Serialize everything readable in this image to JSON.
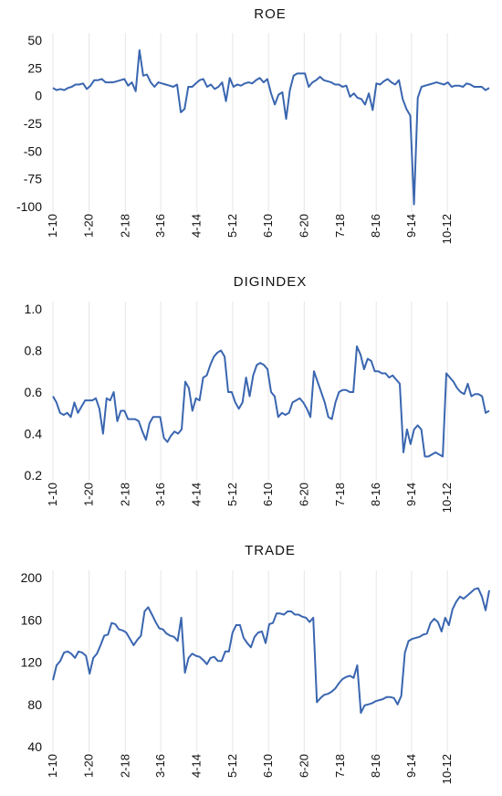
{
  "chart_data": [
    {
      "type": "line",
      "title": "ROE",
      "ylim": [
        -100,
        50
      ],
      "yticks": [
        50,
        25,
        0,
        -25,
        -50,
        -75,
        -100
      ],
      "xticks": [
        "1-10",
        "1-20",
        "2-18",
        "3-16",
        "4-14",
        "5-12",
        "6-10",
        "6-20",
        "7-18",
        "8-16",
        "9-14",
        "10-12"
      ],
      "grid": "vertical",
      "series": [
        {
          "values": [
            7,
            5,
            6,
            5,
            7,
            8,
            10,
            10,
            11,
            6,
            9,
            14,
            14,
            15,
            12,
            12,
            12,
            13,
            14,
            15,
            9,
            12,
            4,
            41,
            18,
            19,
            12,
            8,
            12,
            11,
            10,
            9,
            8,
            10,
            -15,
            -12,
            8,
            8,
            11,
            14,
            15,
            8,
            10,
            6,
            8,
            12,
            -5,
            16,
            8,
            10,
            9,
            11,
            12,
            11,
            14,
            16,
            12,
            15,
            2,
            -8,
            1,
            3,
            -21,
            5,
            18,
            20,
            20,
            20,
            8,
            12,
            14,
            17,
            14,
            13,
            12,
            10,
            10,
            8,
            9,
            -1,
            2,
            -2,
            -3,
            -8,
            2,
            -13,
            11,
            10,
            13,
            15,
            12,
            10,
            14,
            -3,
            -12,
            -18,
            -98,
            -2,
            8,
            9,
            10,
            11,
            12,
            11,
            10,
            12,
            8,
            9,
            9,
            8,
            11,
            10,
            8,
            8,
            8,
            5,
            7
          ]
        }
      ]
    },
    {
      "type": "line",
      "title": "DIGINDEX",
      "ylim": [
        0.2,
        1.0
      ],
      "yticks": [
        "1.0",
        "0.8",
        "0.6",
        "0.4",
        "0.2"
      ],
      "xticks": [
        "1-10",
        "1-20",
        "2-18",
        "3-16",
        "4-14",
        "5-12",
        "6-10",
        "6-20",
        "7-18",
        "8-16",
        "9-14",
        "10-12"
      ],
      "grid": "vertical",
      "series": [
        {
          "values": [
            0.58,
            0.55,
            0.5,
            0.49,
            0.5,
            0.48,
            0.55,
            0.5,
            0.53,
            0.56,
            0.56,
            0.56,
            0.57,
            0.52,
            0.4,
            0.57,
            0.56,
            0.6,
            0.46,
            0.51,
            0.51,
            0.47,
            0.47,
            0.47,
            0.46,
            0.41,
            0.37,
            0.45,
            0.48,
            0.48,
            0.48,
            0.38,
            0.36,
            0.39,
            0.41,
            0.4,
            0.42,
            0.65,
            0.62,
            0.51,
            0.57,
            0.56,
            0.67,
            0.68,
            0.73,
            0.77,
            0.79,
            0.8,
            0.77,
            0.6,
            0.6,
            0.55,
            0.52,
            0.55,
            0.67,
            0.58,
            0.68,
            0.73,
            0.74,
            0.73,
            0.71,
            0.6,
            0.58,
            0.48,
            0.5,
            0.49,
            0.5,
            0.55,
            0.56,
            0.57,
            0.55,
            0.52,
            0.48,
            0.7,
            0.65,
            0.6,
            0.55,
            0.48,
            0.47,
            0.55,
            0.6,
            0.61,
            0.61,
            0.6,
            0.6,
            0.82,
            0.78,
            0.71,
            0.76,
            0.75,
            0.7,
            0.7,
            0.69,
            0.69,
            0.67,
            0.68,
            0.66,
            0.64,
            0.31,
            0.42,
            0.35,
            0.42,
            0.44,
            0.42,
            0.29,
            0.29,
            0.3,
            0.31,
            0.3,
            0.29,
            0.69,
            0.67,
            0.65,
            0.62,
            0.6,
            0.59,
            0.64,
            0.58,
            0.59,
            0.59,
            0.58,
            0.5,
            0.51
          ]
        }
      ]
    },
    {
      "type": "line",
      "title": "TRADE",
      "ylim": [
        40,
        200
      ],
      "yticks": [
        200,
        160,
        120,
        80,
        40
      ],
      "xticks": [
        "1-10",
        "1-20",
        "2-18",
        "3-16",
        "4-14",
        "5-12",
        "6-10",
        "6-20",
        "7-18",
        "8-16",
        "9-14",
        "10-12"
      ],
      "grid": "vertical",
      "series": [
        {
          "values": [
            103,
            117,
            121,
            129,
            130,
            128,
            124,
            130,
            129,
            126,
            109,
            124,
            128,
            136,
            145,
            146,
            157,
            156,
            151,
            150,
            148,
            142,
            136,
            141,
            145,
            168,
            172,
            165,
            158,
            152,
            151,
            147,
            145,
            144,
            140,
            162,
            110,
            124,
            128,
            126,
            125,
            122,
            118,
            124,
            125,
            121,
            121,
            130,
            130,
            148,
            155,
            155,
            143,
            138,
            134,
            144,
            148,
            149,
            138,
            156,
            157,
            166,
            166,
            165,
            168,
            168,
            165,
            165,
            163,
            162,
            158,
            162,
            82,
            86,
            89,
            90,
            92,
            95,
            100,
            104,
            106,
            107,
            105,
            117,
            72,
            79,
            80,
            81,
            83,
            84,
            85,
            87,
            87,
            86,
            80,
            88,
            129,
            140,
            142,
            143,
            144,
            146,
            147,
            157,
            161,
            158,
            149,
            162,
            155,
            170,
            177,
            182,
            180,
            183,
            186,
            189,
            190,
            182,
            169,
            188
          ]
        }
      ]
    }
  ]
}
